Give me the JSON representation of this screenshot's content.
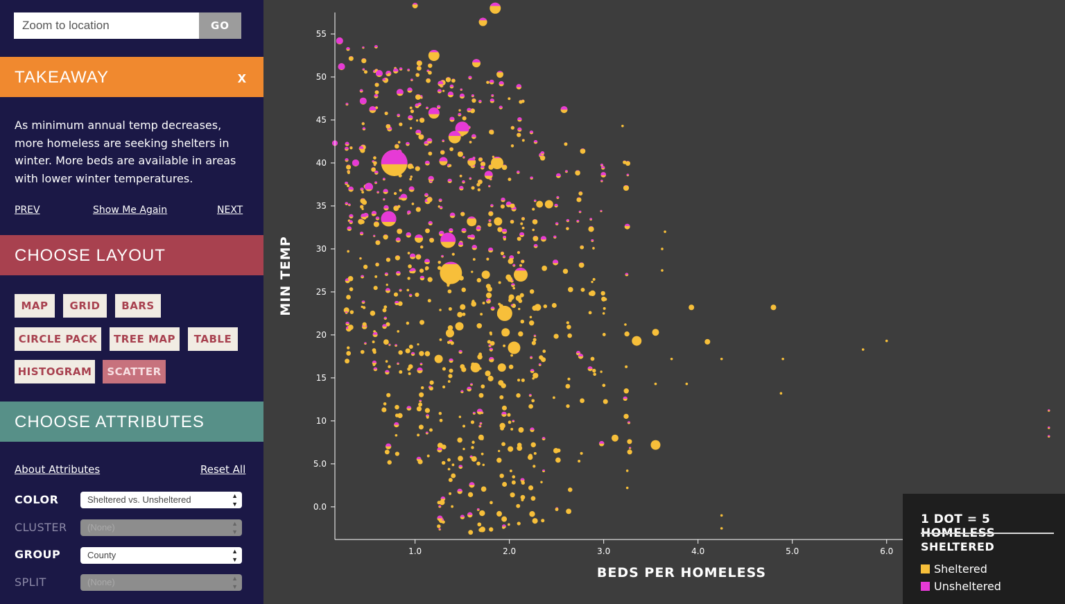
{
  "search": {
    "placeholder": "Zoom to location",
    "go_label": "GO"
  },
  "takeaway": {
    "title": "TAKEAWAY",
    "close_label": "x",
    "text": "As minimum annual temp decreases, more homeless are seeking shelters in winter. More beds are available in areas with lower winter temperatures.",
    "prev_label": "PREV",
    "show_again_label": "Show Me Again",
    "next_label": "NEXT"
  },
  "layout": {
    "title": "CHOOSE LAYOUT",
    "buttons": [
      "MAP",
      "GRID",
      "BARS",
      "CIRCLE PACK",
      "TREE MAP",
      "TABLE",
      "HISTOGRAM",
      "SCATTER"
    ],
    "active": "SCATTER"
  },
  "attributes": {
    "title": "CHOOSE ATTRIBUTES",
    "about_label": "About Attributes",
    "reset_label": "Reset All",
    "rows": [
      {
        "label": "COLOR",
        "value": "Sheltered vs. Unsheltered",
        "enabled": true
      },
      {
        "label": "CLUSTER",
        "value": "(None)",
        "enabled": false
      },
      {
        "label": "GROUP",
        "value": "County",
        "enabled": true
      },
      {
        "label": "SPLIT",
        "value": "(None)",
        "enabled": false
      }
    ]
  },
  "legend": {
    "title": "1 DOT = 5 HOMELESS",
    "subtitle": "SHELTERED",
    "items": [
      {
        "label": "Sheltered",
        "color": "#f7bf3a"
      },
      {
        "label": "Unsheltered",
        "color": "#e63ad6"
      }
    ]
  },
  "colors": {
    "sheltered": "#f7bf3a",
    "unsheltered": "#e63ad6",
    "background": "#3d3d3d",
    "sidebar": "#1b1846"
  },
  "chart_data": {
    "type": "scatter",
    "xlabel": "BEDS PER HOMELESS",
    "ylabel": "MIN TEMP",
    "xlim": [
      0.15,
      7.7
    ],
    "ylim": [
      -3.8,
      57.5
    ],
    "xticks": [
      "1.0",
      "2.0",
      "3.0",
      "4.0",
      "5.0",
      "6.0"
    ],
    "xtick_values": [
      1,
      2,
      3,
      4,
      5,
      6
    ],
    "yticks": [
      "0.0",
      "5.0",
      "10",
      "15",
      "20",
      "25",
      "30",
      "35",
      "40",
      "45",
      "50",
      "55"
    ],
    "ytick_values": [
      0,
      5,
      10,
      15,
      20,
      25,
      30,
      35,
      40,
      45,
      50,
      55
    ],
    "series": [
      {
        "name": "Sheltered",
        "color": "#f7bf3a"
      },
      {
        "name": "Unsheltered",
        "color": "#e63ad6"
      }
    ],
    "points": [
      [
        0.78,
        40.0,
        19,
        0.55
      ],
      [
        1.38,
        27.2,
        16,
        0.1
      ],
      [
        1.35,
        31.0,
        11,
        0.6
      ],
      [
        1.5,
        44.0,
        10,
        0.7
      ],
      [
        1.95,
        22.5,
        11,
        0.0
      ],
      [
        2.12,
        27.0,
        10,
        0.2
      ],
      [
        0.72,
        33.5,
        11,
        0.7
      ],
      [
        1.2,
        45.8,
        8,
        0.6
      ],
      [
        1.42,
        43.0,
        9,
        0.4
      ],
      [
        1.87,
        40.0,
        9,
        0.1
      ],
      [
        0.2,
        54.2,
        5,
        0.9
      ],
      [
        1.85,
        58.0,
        8,
        0.3
      ],
      [
        1.2,
        52.5,
        8,
        0.2
      ],
      [
        2.05,
        18.5,
        9,
        0.0
      ],
      [
        3.35,
        19.3,
        7,
        0.0
      ],
      [
        3.55,
        7.2,
        7,
        0.0
      ],
      [
        1.6,
        40.1,
        6,
        0.3
      ],
      [
        1.3,
        40.2,
        6,
        0.5
      ],
      [
        1.78,
        38.6,
        6,
        0.6
      ],
      [
        2.42,
        35.2,
        6,
        0.0
      ],
      [
        1.6,
        33.2,
        7,
        0.2
      ],
      [
        1.88,
        33.2,
        6,
        0.0
      ],
      [
        1.04,
        31.2,
        6,
        0.4
      ],
      [
        1.25,
        17.2,
        6,
        0.0
      ],
      [
        1.64,
        16.2,
        7,
        0.0
      ],
      [
        1.92,
        16.2,
        6,
        0.0
      ],
      [
        1.37,
        20.2,
        6,
        0.0
      ],
      [
        1.75,
        27.0,
        6,
        0.0
      ],
      [
        1.47,
        21.0,
        6,
        0.0
      ],
      [
        1.96,
        20.3,
        6,
        0.0
      ],
      [
        3.55,
        20.3,
        5,
        0.0
      ],
      [
        3.12,
        8.0,
        5,
        0.0
      ],
      [
        0.51,
        37.2,
        6,
        0.8
      ],
      [
        0.37,
        40.0,
        5,
        0.9
      ],
      [
        0.88,
        36.0,
        5,
        0.6
      ],
      [
        1.9,
        50.3,
        5,
        0.2
      ],
      [
        1.65,
        51.6,
        6,
        0.4
      ],
      [
        1.72,
        56.4,
        6,
        0.3
      ],
      [
        2.32,
        35.2,
        5,
        0.0
      ],
      [
        2.58,
        46.2,
        5,
        0.5
      ],
      [
        4.8,
        23.2,
        4,
        0.0
      ],
      [
        3.93,
        23.2,
        4,
        0.0
      ],
      [
        4.1,
        19.2,
        4,
        0.0
      ],
      [
        2.3,
        23.2,
        5,
        0.0
      ],
      [
        0.22,
        51.2,
        5,
        0.9
      ],
      [
        0.45,
        47.2,
        5,
        0.9
      ],
      [
        0.55,
        46.2,
        5,
        0.6
      ],
      [
        0.84,
        48.2,
        5,
        0.7
      ],
      [
        0.62,
        50.4,
        5,
        0.8
      ],
      [
        1.0,
        58.3,
        4,
        0.3
      ],
      [
        3.25,
        32.6,
        4,
        0.4
      ],
      [
        0.15,
        42.3,
        4,
        0.9
      ]
    ]
  }
}
